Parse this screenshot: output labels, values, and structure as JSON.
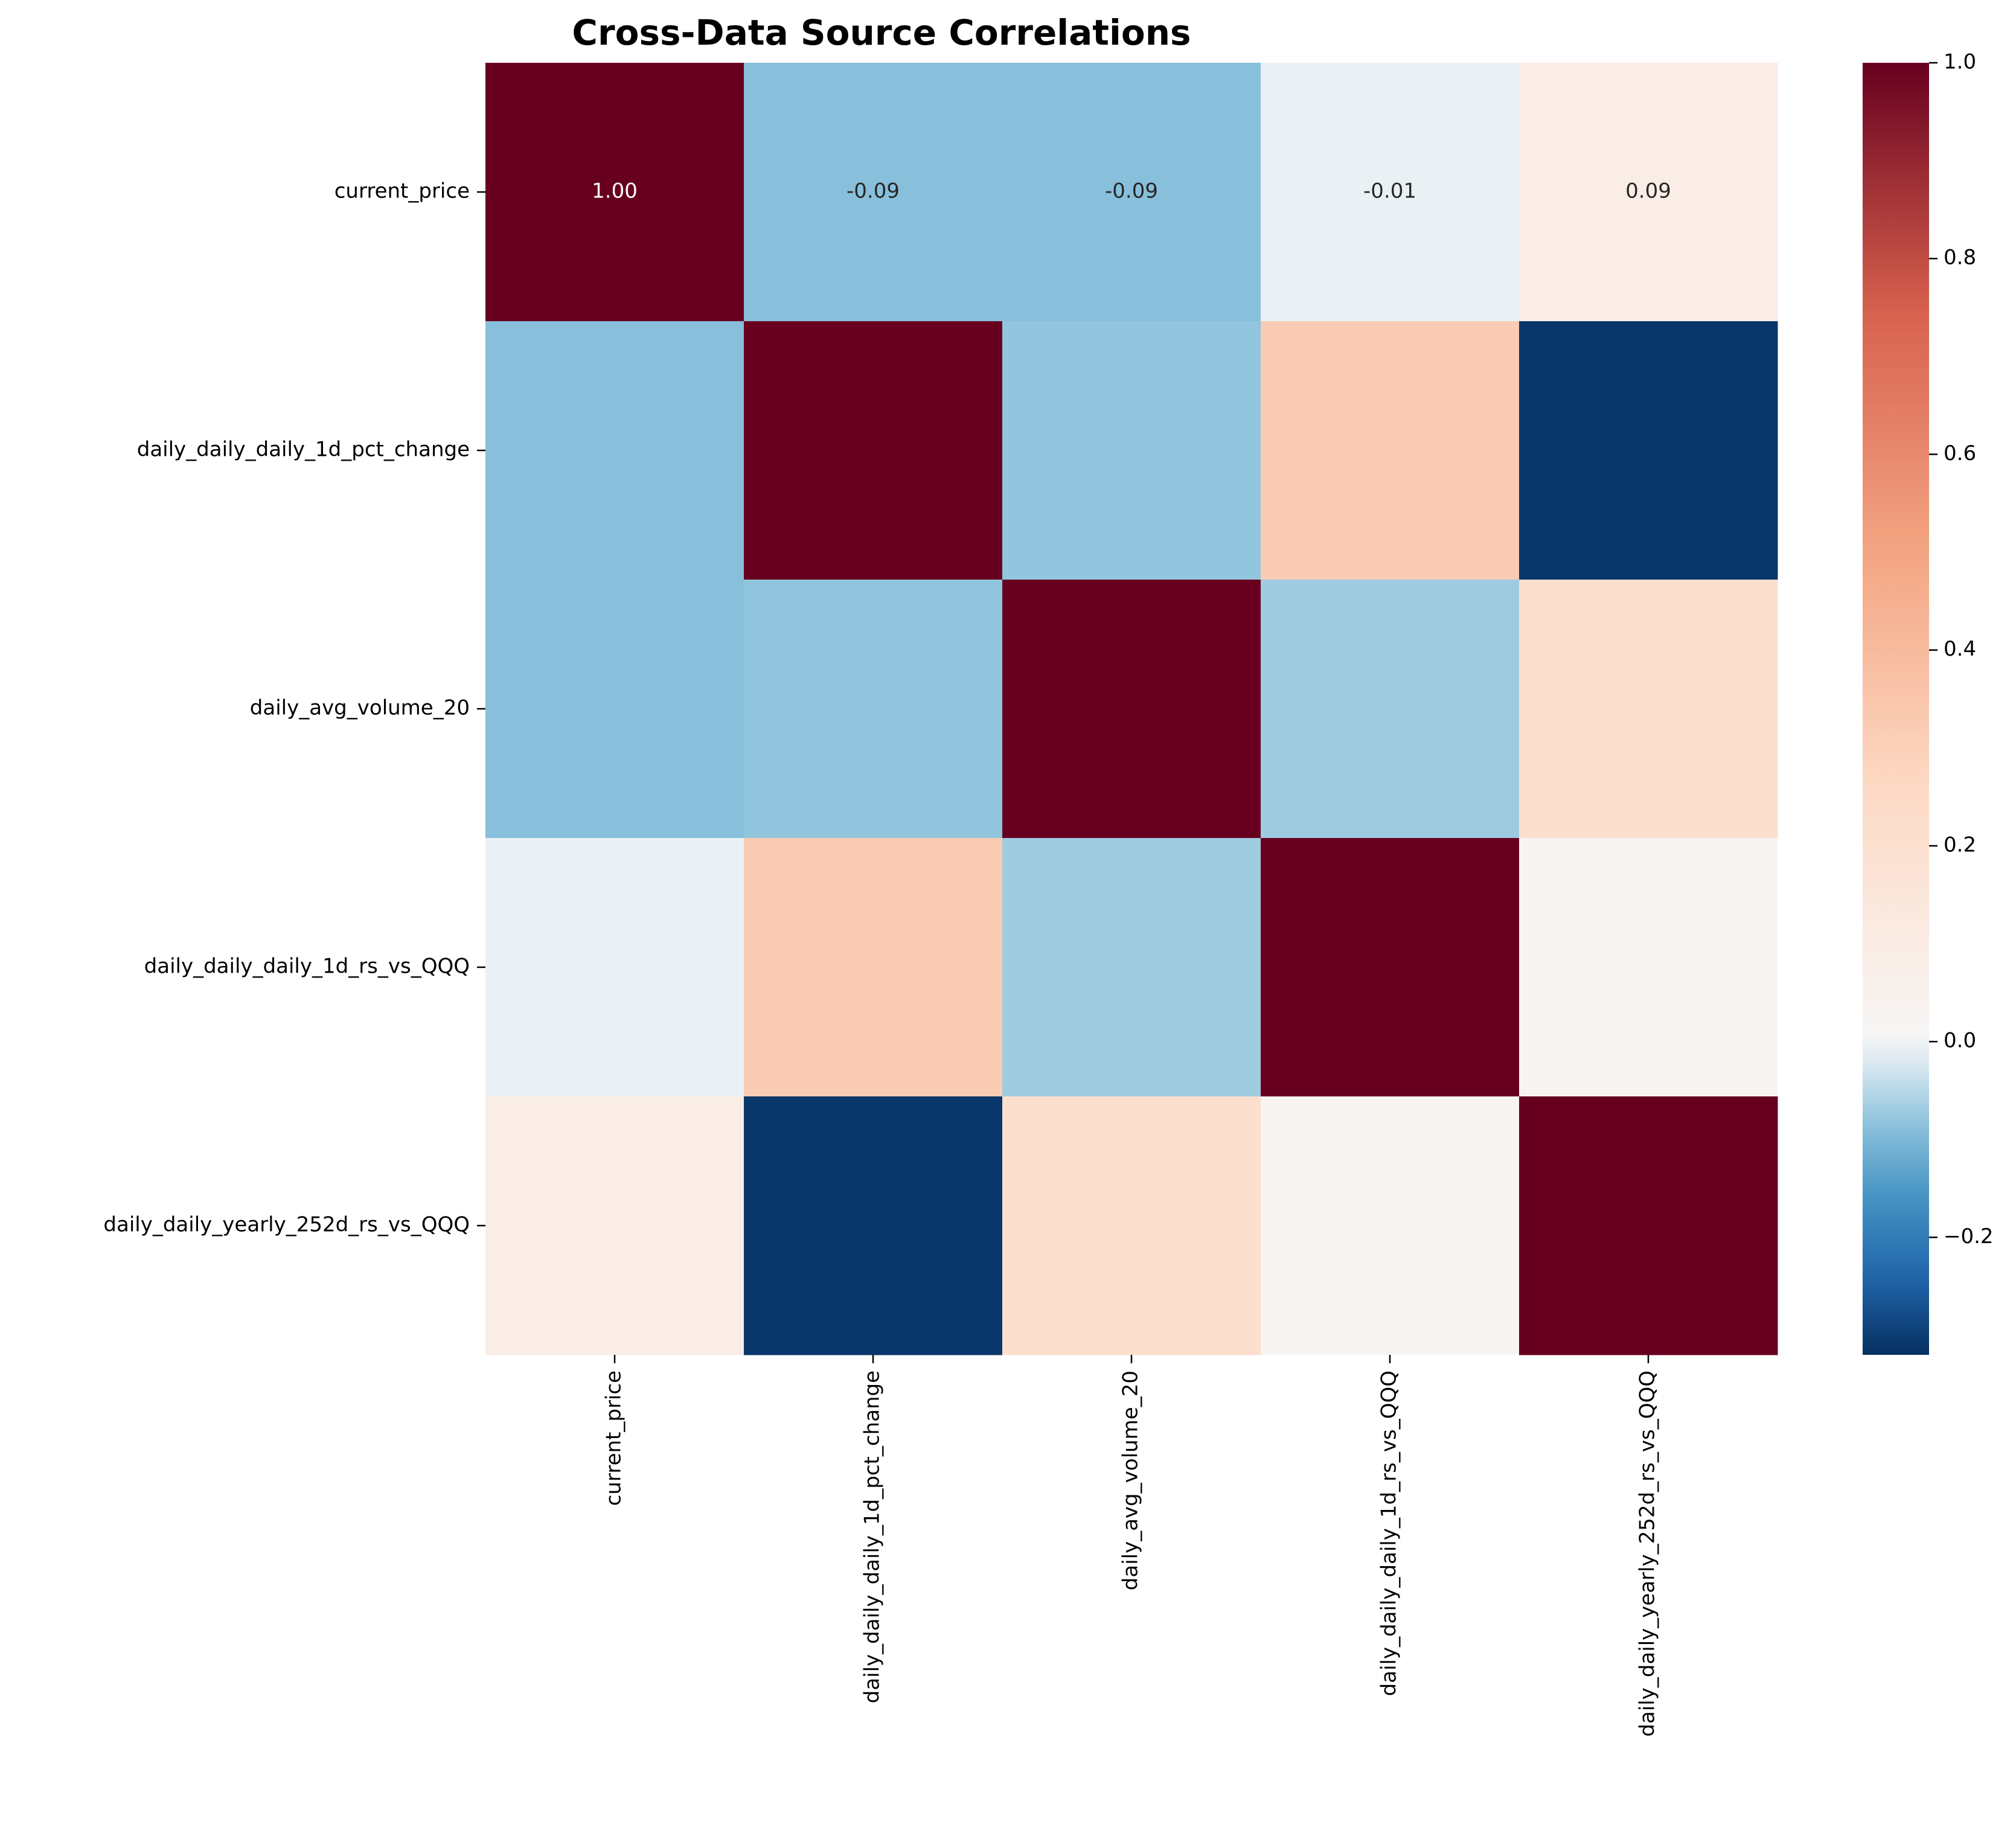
{
  "chart_data": {
    "type": "heatmap",
    "title": "Cross-Data Source Correlations",
    "row_labels": [
      "current_price",
      "daily_daily_daily_1d_pct_change",
      "daily_avg_volume_20",
      "daily_daily_daily_1d_rs_vs_QQQ",
      "daily_daily_yearly_252d_rs_vs_QQQ"
    ],
    "col_labels": [
      "current_price",
      "daily_daily_daily_1d_pct_change",
      "daily_avg_volume_20",
      "daily_daily_daily_1d_rs_vs_QQQ",
      "daily_daily_yearly_252d_rs_vs_QQQ"
    ],
    "values": [
      [
        1.0,
        -0.09,
        -0.09,
        -0.01,
        0.09
      ],
      [
        -0.09,
        1.0,
        -0.08,
        0.32,
        -0.31
      ],
      [
        -0.09,
        -0.08,
        1.0,
        -0.07,
        0.21
      ],
      [
        -0.01,
        0.32,
        -0.07,
        1.0,
        0.03
      ],
      [
        0.09,
        -0.31,
        0.21,
        0.03,
        1.0
      ]
    ],
    "annotated_row": 0,
    "annotations": [
      "1.00",
      "-0.09",
      "-0.09",
      "-0.01",
      "0.09"
    ],
    "colormap": "RdBu_r",
    "vmin": -0.32,
    "vmax": 1.0,
    "colorbar_ticks": [
      1.0,
      0.8,
      0.6,
      0.4,
      0.2,
      0.0,
      -0.2
    ],
    "colorbar_tick_labels": [
      "1.0",
      "0.8",
      "0.6",
      "0.4",
      "0.2",
      "0.0",
      "−0.2"
    ]
  }
}
